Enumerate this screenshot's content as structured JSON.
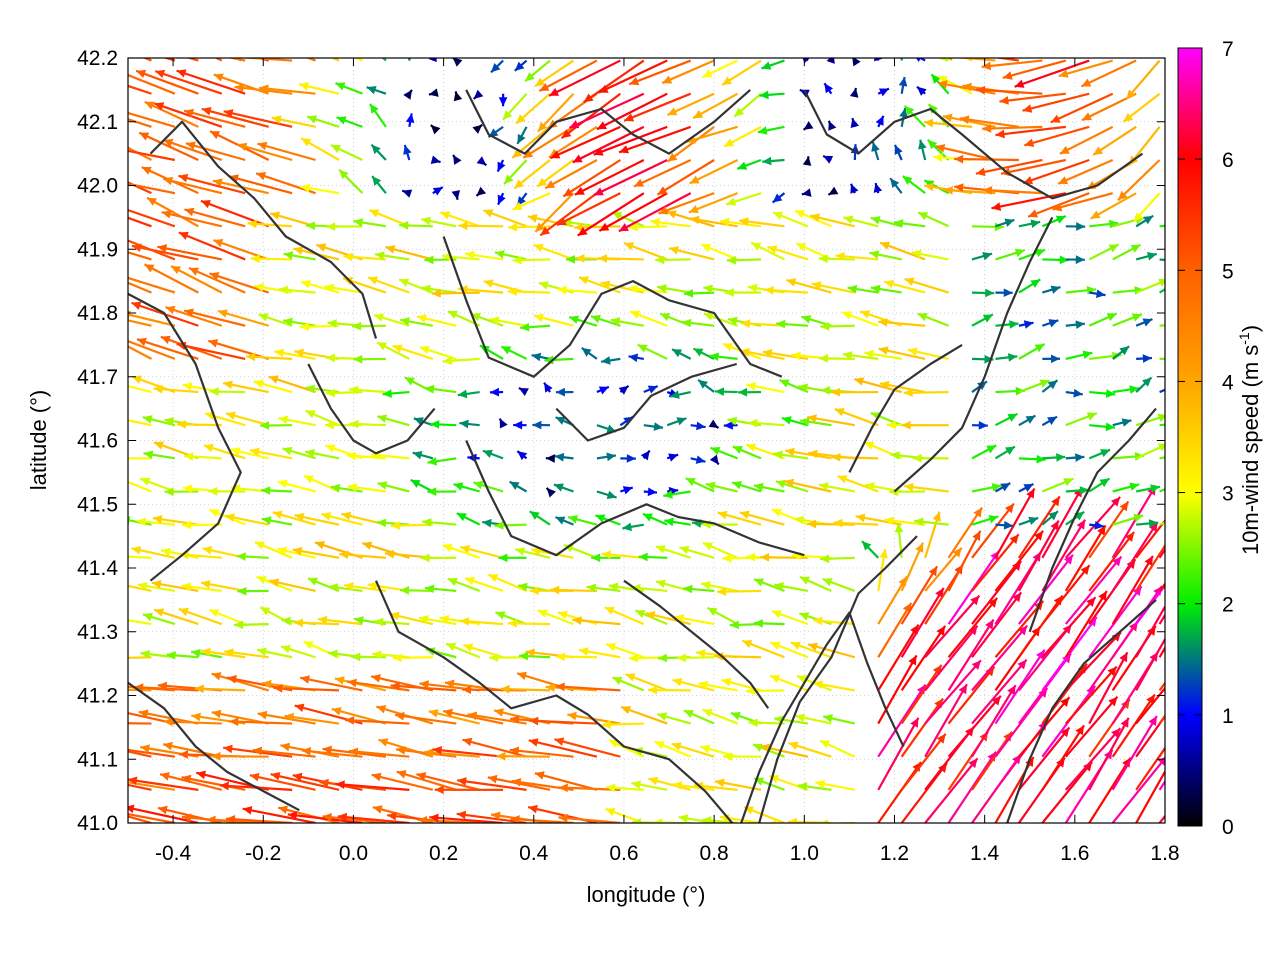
{
  "chart_data": {
    "type": "vector_field",
    "xlabel": "longitude (°)",
    "ylabel": "latitude (°)",
    "colorbar_label": "10m-wind speed (m s",
    "colorbar_label_sup": "-1",
    "colorbar_label_tail": ")",
    "xlim": [
      -0.5,
      1.8
    ],
    "ylim": [
      41.0,
      42.2
    ],
    "x_ticks": [
      -0.4,
      -0.2,
      0.0,
      0.2,
      0.4,
      0.6,
      0.8,
      1.0,
      1.2,
      1.4,
      1.6,
      1.8
    ],
    "x_tick_labels": [
      "-0.4",
      "-0.2",
      "0.0",
      "0.2",
      "0.4",
      "0.6",
      "0.8",
      "1.0",
      "1.2",
      "1.4",
      "1.6",
      "1.8"
    ],
    "y_ticks": [
      41.0,
      41.1,
      41.2,
      41.3,
      41.4,
      41.5,
      41.6,
      41.7,
      41.8,
      41.9,
      42.0,
      42.1,
      42.2
    ],
    "y_tick_labels": [
      "41.0",
      "41.1",
      "41.2",
      "41.3",
      "41.4",
      "41.5",
      "41.6",
      "41.7",
      "41.8",
      "41.9",
      "42.0",
      "42.1",
      "42.2"
    ],
    "colorbar": {
      "range": [
        0,
        7
      ],
      "ticks": [
        0,
        1,
        2,
        3,
        4,
        5,
        6,
        7
      ],
      "tick_labels": [
        "0",
        "1",
        "2",
        "3",
        "4",
        "5",
        "6",
        "7"
      ],
      "stops": [
        {
          "value": 0,
          "color": "#000000"
        },
        {
          "value": 1,
          "color": "#0000ff"
        },
        {
          "value": 2,
          "color": "#00ee00"
        },
        {
          "value": 3,
          "color": "#ffff00"
        },
        {
          "value": 4,
          "color": "#ffa500"
        },
        {
          "value": 5,
          "color": "#ff6000"
        },
        {
          "value": 6,
          "color": "#ff0000"
        },
        {
          "value": 7,
          "color": "#ff00ff"
        }
      ]
    },
    "grid": true,
    "contour_color": "#333333",
    "contours": [
      [
        [
          -0.45,
          42.05
        ],
        [
          -0.38,
          42.1
        ],
        [
          -0.3,
          42.03
        ],
        [
          -0.22,
          41.98
        ],
        [
          -0.15,
          41.92
        ],
        [
          -0.05,
          41.88
        ],
        [
          0.02,
          41.83
        ],
        [
          0.05,
          41.76
        ]
      ],
      [
        [
          -0.5,
          41.83
        ],
        [
          -0.42,
          41.8
        ],
        [
          -0.35,
          41.72
        ],
        [
          -0.3,
          41.62
        ],
        [
          -0.25,
          41.55
        ],
        [
          -0.3,
          41.47
        ],
        [
          -0.38,
          41.42
        ],
        [
          -0.45,
          41.38
        ]
      ],
      [
        [
          0.2,
          41.92
        ],
        [
          0.25,
          41.82
        ],
        [
          0.3,
          41.73
        ],
        [
          0.4,
          41.7
        ],
        [
          0.48,
          41.75
        ],
        [
          0.55,
          41.83
        ],
        [
          0.62,
          41.85
        ],
        [
          0.7,
          41.82
        ],
        [
          0.8,
          41.8
        ],
        [
          0.88,
          41.72
        ],
        [
          0.95,
          41.7
        ]
      ],
      [
        [
          0.25,
          41.6
        ],
        [
          0.3,
          41.52
        ],
        [
          0.35,
          41.45
        ],
        [
          0.45,
          41.42
        ],
        [
          0.55,
          41.47
        ],
        [
          0.65,
          41.5
        ],
        [
          0.72,
          41.48
        ],
        [
          0.8,
          41.47
        ],
        [
          0.9,
          41.44
        ],
        [
          1.0,
          41.42
        ]
      ],
      [
        [
          0.45,
          41.65
        ],
        [
          0.52,
          41.6
        ],
        [
          0.6,
          41.62
        ],
        [
          0.66,
          41.67
        ],
        [
          0.75,
          41.7
        ],
        [
          0.85,
          41.72
        ]
      ],
      [
        [
          0.05,
          41.38
        ],
        [
          0.1,
          41.3
        ],
        [
          0.2,
          41.26
        ],
        [
          0.28,
          41.22
        ],
        [
          0.35,
          41.18
        ],
        [
          0.45,
          41.2
        ],
        [
          0.52,
          41.17
        ],
        [
          0.6,
          41.12
        ],
        [
          0.7,
          41.1
        ],
        [
          0.78,
          41.05
        ],
        [
          0.84,
          41.0
        ]
      ],
      [
        [
          0.86,
          41.0
        ],
        [
          0.9,
          41.08
        ],
        [
          0.95,
          41.16
        ],
        [
          1.0,
          41.22
        ],
        [
          1.05,
          41.28
        ],
        [
          1.1,
          41.33
        ],
        [
          1.14,
          41.25
        ],
        [
          1.18,
          41.18
        ],
        [
          1.22,
          41.12
        ]
      ],
      [
        [
          0.9,
          41.0
        ],
        [
          0.94,
          41.1
        ],
        [
          0.99,
          41.19
        ],
        [
          1.06,
          41.26
        ],
        [
          1.12,
          41.36
        ],
        [
          1.18,
          41.4
        ],
        [
          1.25,
          41.45
        ]
      ],
      [
        [
          1.2,
          41.52
        ],
        [
          1.28,
          41.57
        ],
        [
          1.35,
          41.62
        ],
        [
          1.4,
          41.7
        ],
        [
          1.45,
          41.8
        ],
        [
          1.5,
          41.88
        ],
        [
          1.55,
          41.95
        ]
      ],
      [
        [
          1.1,
          41.55
        ],
        [
          1.15,
          41.62
        ],
        [
          1.2,
          41.68
        ],
        [
          1.28,
          41.72
        ],
        [
          1.35,
          41.75
        ]
      ],
      [
        [
          0.25,
          42.15
        ],
        [
          0.3,
          42.08
        ],
        [
          0.38,
          42.05
        ],
        [
          0.45,
          42.1
        ],
        [
          0.55,
          42.12
        ],
        [
          0.62,
          42.08
        ],
        [
          0.7,
          42.05
        ],
        [
          0.8,
          42.1
        ],
        [
          0.88,
          42.15
        ]
      ],
      [
        [
          1.0,
          42.15
        ],
        [
          1.05,
          42.08
        ],
        [
          1.12,
          42.05
        ],
        [
          1.2,
          42.1
        ],
        [
          1.28,
          42.12
        ],
        [
          1.35,
          42.08
        ],
        [
          1.45,
          42.02
        ],
        [
          1.55,
          41.98
        ],
        [
          1.65,
          42.0
        ],
        [
          1.75,
          42.05
        ]
      ],
      [
        [
          1.5,
          41.3
        ],
        [
          1.55,
          41.4
        ],
        [
          1.6,
          41.48
        ],
        [
          1.65,
          41.55
        ],
        [
          1.72,
          41.6
        ],
        [
          1.78,
          41.65
        ]
      ],
      [
        [
          1.45,
          41.0
        ],
        [
          1.5,
          41.1
        ],
        [
          1.55,
          41.18
        ],
        [
          1.62,
          41.25
        ],
        [
          1.7,
          41.3
        ],
        [
          1.78,
          41.35
        ]
      ],
      [
        [
          -0.5,
          41.22
        ],
        [
          -0.42,
          41.18
        ],
        [
          -0.35,
          41.12
        ],
        [
          -0.28,
          41.08
        ],
        [
          -0.2,
          41.05
        ],
        [
          -0.12,
          41.02
        ]
      ],
      [
        [
          -0.1,
          41.72
        ],
        [
          -0.05,
          41.65
        ],
        [
          0.0,
          41.6
        ],
        [
          0.05,
          41.58
        ],
        [
          0.12,
          41.6
        ],
        [
          0.18,
          41.65
        ]
      ],
      [
        [
          0.6,
          41.38
        ],
        [
          0.68,
          41.34
        ],
        [
          0.75,
          41.3
        ],
        [
          0.82,
          41.26
        ],
        [
          0.88,
          41.22
        ],
        [
          0.92,
          41.18
        ]
      ]
    ]
  }
}
